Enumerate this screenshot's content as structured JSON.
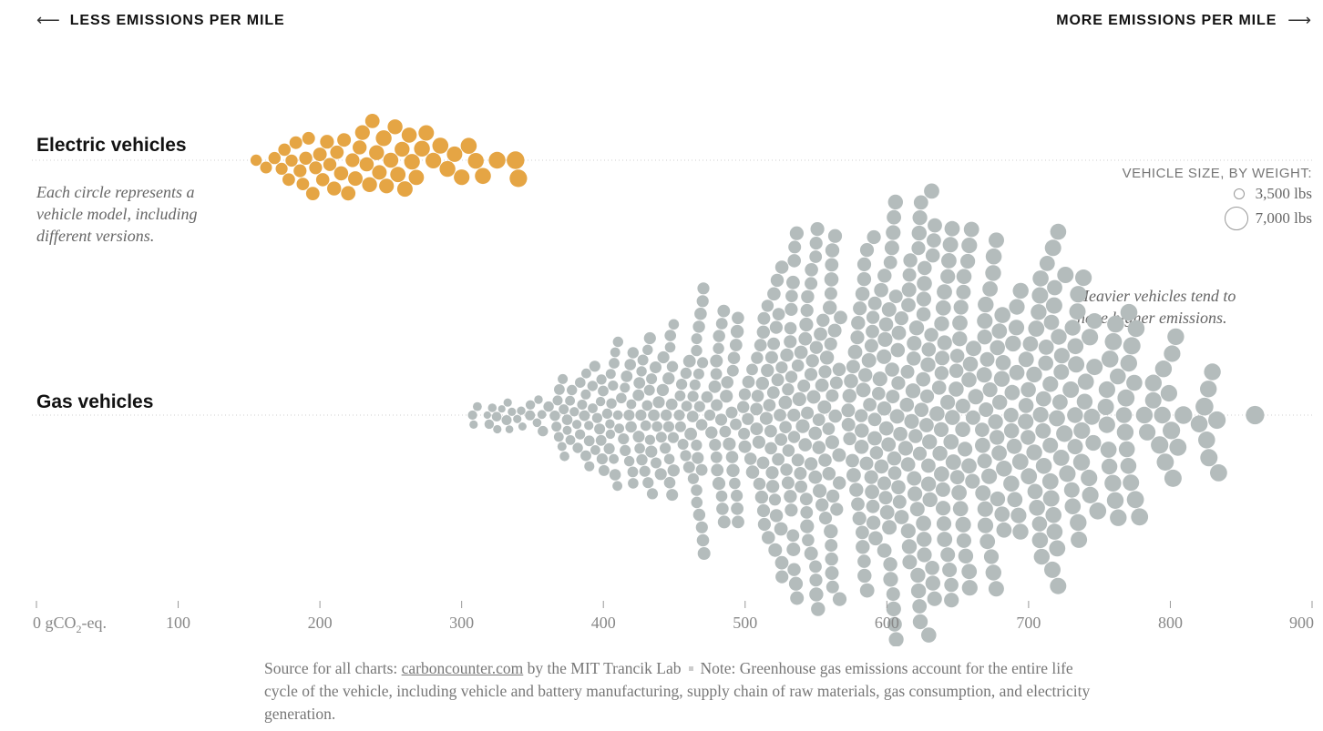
{
  "header": {
    "left_label": "LESS EMISSIONS PER MILE",
    "right_label": "MORE EMISSIONS PER MILE",
    "left_arrow": "⟵",
    "right_arrow": "⟶"
  },
  "groups": {
    "electric": {
      "title": "Electric vehicles",
      "note": "Each circle represents a vehicle model, including different versions.",
      "color": "#e5a544"
    },
    "gas": {
      "title": "Gas vehicles",
      "note": "Heavier vehicles tend to have higher emissions.",
      "color": "#b4bcbc"
    }
  },
  "legend": {
    "title": "VEHICLE SIZE, BY WEIGHT:",
    "small_label": "3,500 lbs",
    "large_label": "7,000 lbs"
  },
  "axis": {
    "ticks": [
      {
        "value": 0,
        "label": "0 gCO",
        "sub": "2",
        "suffix": "-eq."
      },
      {
        "value": 100,
        "label": "100"
      },
      {
        "value": 200,
        "label": "200"
      },
      {
        "value": 300,
        "label": "300"
      },
      {
        "value": 400,
        "label": "400"
      },
      {
        "value": 500,
        "label": "500"
      },
      {
        "value": 600,
        "label": "600"
      },
      {
        "value": 700,
        "label": "700"
      },
      {
        "value": 800,
        "label": "800"
      },
      {
        "value": 900,
        "label": "900"
      }
    ]
  },
  "source": {
    "prefix": "Source for all charts: ",
    "link": "carboncounter.com",
    "middle": " by the MIT Trancik Lab",
    "note": "Note: Greenhouse gas emissions account for the entire life cycle of the vehicle, including vehicle and battery manufacturing, supply chain of raw materials, gas consumption, and electricity generation."
  },
  "chart_data": {
    "type": "scatter",
    "title": "",
    "xlabel": "gCO2-eq.",
    "xlim": [
      0,
      900
    ],
    "series": [
      {
        "name": "Electric vehicles",
        "points": [
          {
            "x": 155,
            "w": 2700
          },
          {
            "x": 162,
            "w": 2900
          },
          {
            "x": 168,
            "w": 3100
          },
          {
            "x": 173,
            "w": 3000
          },
          {
            "x": 175,
            "w": 3200
          },
          {
            "x": 178,
            "w": 3300
          },
          {
            "x": 180,
            "w": 3100
          },
          {
            "x": 183,
            "w": 3400
          },
          {
            "x": 186,
            "w": 3500
          },
          {
            "x": 188,
            "w": 3300
          },
          {
            "x": 190,
            "w": 3600
          },
          {
            "x": 192,
            "w": 3400
          },
          {
            "x": 195,
            "w": 3800
          },
          {
            "x": 197,
            "w": 3500
          },
          {
            "x": 200,
            "w": 3900
          },
          {
            "x": 202,
            "w": 3700
          },
          {
            "x": 205,
            "w": 4000
          },
          {
            "x": 207,
            "w": 3600
          },
          {
            "x": 210,
            "w": 4100
          },
          {
            "x": 212,
            "w": 3800
          },
          {
            "x": 215,
            "w": 4200
          },
          {
            "x": 217,
            "w": 3900
          },
          {
            "x": 220,
            "w": 4300
          },
          {
            "x": 223,
            "w": 4000
          },
          {
            "x": 225,
            "w": 4400
          },
          {
            "x": 228,
            "w": 4100
          },
          {
            "x": 230,
            "w": 4500
          },
          {
            "x": 233,
            "w": 4200
          },
          {
            "x": 235,
            "w": 4600
          },
          {
            "x": 237,
            "w": 4300
          },
          {
            "x": 240,
            "w": 4700
          },
          {
            "x": 242,
            "w": 4400
          },
          {
            "x": 245,
            "w": 5200
          },
          {
            "x": 247,
            "w": 4500
          },
          {
            "x": 250,
            "w": 4800
          },
          {
            "x": 253,
            "w": 4600
          },
          {
            "x": 255,
            "w": 4900
          },
          {
            "x": 258,
            "w": 4700
          },
          {
            "x": 260,
            "w": 5000
          },
          {
            "x": 263,
            "w": 4800
          },
          {
            "x": 265,
            "w": 5100
          },
          {
            "x": 268,
            "w": 4900
          },
          {
            "x": 272,
            "w": 5200
          },
          {
            "x": 275,
            "w": 5000
          },
          {
            "x": 280,
            "w": 5100
          },
          {
            "x": 285,
            "w": 5300
          },
          {
            "x": 290,
            "w": 5200
          },
          {
            "x": 295,
            "w": 5000
          },
          {
            "x": 300,
            "w": 5100
          },
          {
            "x": 305,
            "w": 5300
          },
          {
            "x": 310,
            "w": 5200
          },
          {
            "x": 315,
            "w": 5400
          },
          {
            "x": 325,
            "w": 5800
          },
          {
            "x": 338,
            "w": 6500
          },
          {
            "x": 340,
            "w": 6400
          }
        ]
      },
      {
        "name": "Gas vehicles",
        "generated": true,
        "count": 720,
        "x_min": 305,
        "x_max": 860,
        "x_mode": 540
      }
    ]
  }
}
